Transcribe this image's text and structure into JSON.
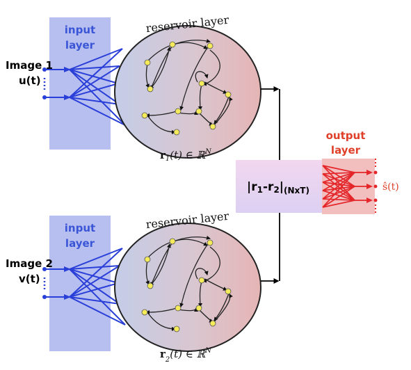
{
  "colors": {
    "input_panel": "#aab4ee",
    "input_text": "#3a55d6",
    "input_lines": "#2a3fd8",
    "node": "#f4ea5a",
    "output_text": "#e0402a",
    "output_lines": "#e4262a",
    "box_fill": "#e6d2ee",
    "output_panel": "#f0b3b3"
  },
  "top": {
    "input_label_line1": "input",
    "input_label_line2": "layer",
    "image_label": "Image 1",
    "signal_label": "u(t)",
    "reservoir_label": "reservoir layer",
    "state_label": "r",
    "state_subscript": "1",
    "state_rest": "(t) ∈ ℝ",
    "state_exponent": "N"
  },
  "bottom": {
    "input_label_line1": "input",
    "input_label_line2": "layer",
    "image_label": "Image 2",
    "signal_label": "v(t)",
    "reservoir_label": "reservoir layer",
    "state_label": "r",
    "state_subscript": "2",
    "state_rest": "(t) ∈ ℝ",
    "state_exponent": "N"
  },
  "difference_box": {
    "main": "|r",
    "sub1": "1",
    "mid": "-r",
    "sub2": "2",
    "bar": "|",
    "dims": "(NxT)"
  },
  "output": {
    "label_line1": "output",
    "label_line2": "layer",
    "signal_label": "ŝ(t)"
  }
}
